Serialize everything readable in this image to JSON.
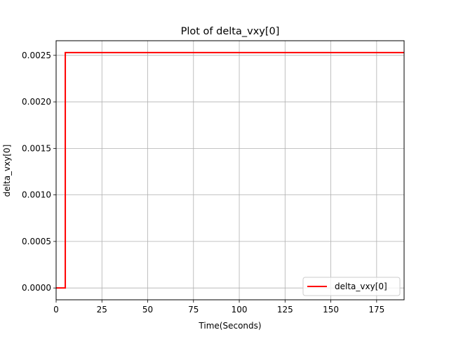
{
  "chart_data": {
    "type": "line",
    "title": "Plot of delta_vxy[0]",
    "xlabel": "Time(Seconds)",
    "ylabel": "delta_vxy[0]",
    "xlim": [
      0,
      190
    ],
    "ylim": [
      -0.000127,
      0.002657
    ],
    "xticks": [
      0,
      25,
      50,
      75,
      100,
      125,
      150,
      175
    ],
    "xtick_labels": [
      "0",
      "25",
      "50",
      "75",
      "100",
      "125",
      "150",
      "175"
    ],
    "yticks": [
      0.0,
      0.0005,
      0.001,
      0.0015,
      0.002,
      0.0025
    ],
    "ytick_labels": [
      "0.0000",
      "0.0005",
      "0.0010",
      "0.0015",
      "0.0020",
      "0.0025"
    ],
    "grid": true,
    "legend_position": "lower-right",
    "series": [
      {
        "name": "delta_vxy[0]",
        "color": "#ff0000",
        "x": [
          0,
          5,
          5,
          190
        ],
        "y": [
          0.0,
          0.0,
          0.00253,
          0.00253
        ]
      }
    ]
  }
}
